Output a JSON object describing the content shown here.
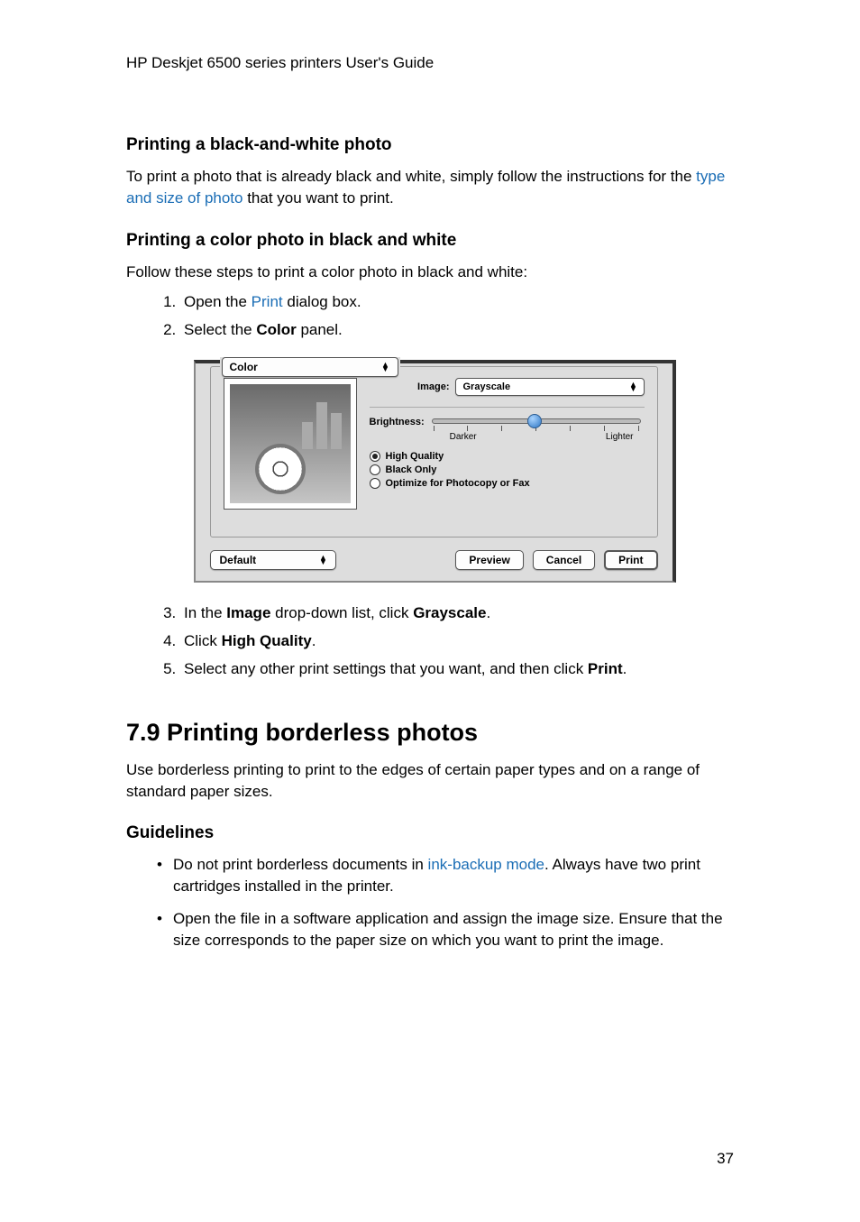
{
  "doc_header": "HP Deskjet 6500 series printers User's Guide",
  "section1": {
    "heading": "Printing a black-and-white photo",
    "para_before_link": "To print a photo that is already black and white, simply follow the instructions for the ",
    "link": "type and size of photo",
    "para_after_link": " that you want to print."
  },
  "section2": {
    "heading": "Printing a color photo in black and white",
    "intro": "Follow these steps to print a color photo in black and white:",
    "step1_a": "Open the ",
    "step1_link": "Print",
    "step1_b": " dialog box.",
    "step2_a": "Select the ",
    "step2_bold": "Color",
    "step2_b": " panel.",
    "step3_a": "In the ",
    "step3_bold1": "Image",
    "step3_b": " drop-down list, click ",
    "step3_bold2": "Grayscale",
    "step3_c": ".",
    "step4_a": "Click ",
    "step4_bold": "High Quality",
    "step4_b": ".",
    "step5_a": "Select any other print settings that you want, and then click ",
    "step5_bold": "Print",
    "step5_b": "."
  },
  "dialog": {
    "panel_name": "Color",
    "image_label": "Image:",
    "image_value": "Grayscale",
    "brightness_label": "Brightness:",
    "darker": "Darker",
    "lighter": "Lighter",
    "radio1": "High Quality",
    "radio2": "Black Only",
    "radio3": "Optimize for Photocopy or Fax",
    "preset": "Default",
    "preview": "Preview",
    "cancel": "Cancel",
    "print": "Print",
    "colors": {
      "background": "#dddddd",
      "border_dark": "#333333",
      "control_bg": "#fdfdfd",
      "control_border": "#555555",
      "slider_thumb": "#2e76c4"
    }
  },
  "section3": {
    "heading": "7.9  Printing borderless photos",
    "intro": "Use borderless printing to print to the edges of certain paper types and on a range of standard paper sizes."
  },
  "guidelines": {
    "heading": "Guidelines",
    "b1_a": "Do not print borderless documents in ",
    "b1_link": "ink-backup mode",
    "b1_b": ". Always have two print cartridges installed in the printer.",
    "b2": "Open the file in a software application and assign the image size. Ensure that the size corresponds to the paper size on which you want to print the image."
  },
  "page_number": "37"
}
